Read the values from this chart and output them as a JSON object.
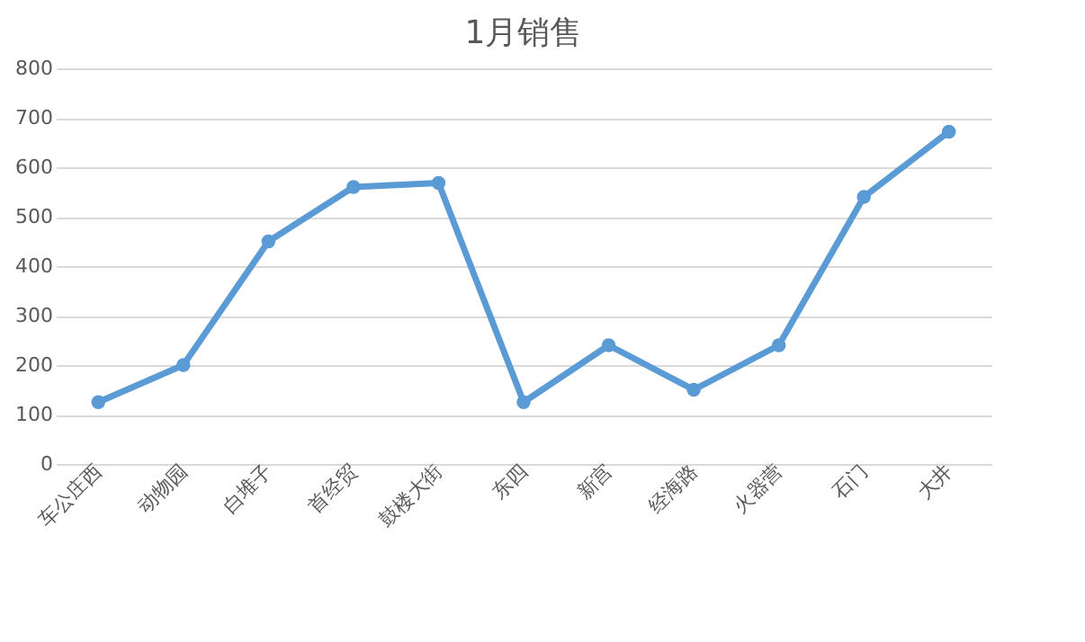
{
  "chart_data": {
    "type": "line",
    "title": "1月销售",
    "categories": [
      "车公庄西",
      "动物园",
      "白堆子",
      "首经贸",
      "鼓楼大街",
      "东四",
      "新宫",
      "经海路",
      "火器营",
      "石门",
      "大井"
    ],
    "series": [
      {
        "color": "#5b9bd5",
        "values": [
          125,
          200,
          450,
          560,
          568,
          125,
          240,
          150,
          240,
          540,
          672
        ]
      }
    ],
    "ylim": [
      0,
      800
    ],
    "yticks": [
      0,
      100,
      200,
      300,
      400,
      500,
      600,
      700,
      800
    ],
    "grid": "y",
    "marker": "circle",
    "line_style": "solid"
  }
}
